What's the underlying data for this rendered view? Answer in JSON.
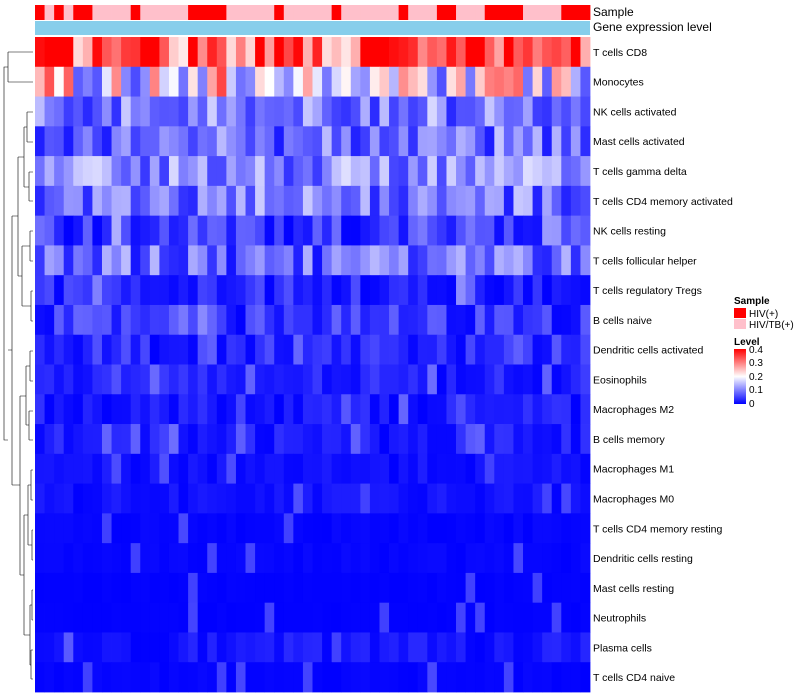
{
  "chart_data": {
    "type": "heatmap",
    "annotation_labels": [
      "Sample",
      "Gene expression level"
    ],
    "sample_groups": [
      "HIV(+)",
      "HIV/TB(+)"
    ],
    "sample_pattern": [
      1,
      0,
      1,
      0,
      1,
      1,
      0,
      0,
      0,
      0,
      1,
      0,
      0,
      0,
      0,
      0,
      1,
      1,
      1,
      1,
      0,
      0,
      0,
      0,
      0,
      1,
      0,
      0,
      0,
      0,
      0,
      1,
      0,
      0,
      0,
      0,
      0,
      0,
      1,
      0,
      0,
      0,
      1,
      1,
      0,
      0,
      0,
      1,
      1,
      1,
      1,
      0,
      0,
      0,
      0,
      1,
      1,
      1
    ],
    "rows": [
      {
        "name": "T cells CD8",
        "base": 0.34
      },
      {
        "name": "Monocytes",
        "base": 0.2
      },
      {
        "name": "NK cells activated",
        "base": 0.1
      },
      {
        "name": "Mast cells activated",
        "base": 0.09
      },
      {
        "name": "T cells gamma delta",
        "base": 0.11
      },
      {
        "name": "T cells CD4 memory activated",
        "base": 0.09
      },
      {
        "name": "NK cells resting",
        "base": 0.06
      },
      {
        "name": "T cells follicular helper",
        "base": 0.08
      },
      {
        "name": "T cells regulatory  Tregs",
        "base": 0.04
      },
      {
        "name": "B cells naive",
        "base": 0.05
      },
      {
        "name": "Dendritic cells activated",
        "base": 0.04
      },
      {
        "name": "Eosinophils",
        "base": 0.03
      },
      {
        "name": "Macrophages M2",
        "base": 0.025
      },
      {
        "name": "B cells memory",
        "base": 0.025
      },
      {
        "name": "Macrophages M1",
        "base": 0.015
      },
      {
        "name": "Macrophages M0",
        "base": 0.015
      },
      {
        "name": "T cells CD4 memory resting",
        "base": 0.005
      },
      {
        "name": "Dendritic cells resting",
        "base": 0.005
      },
      {
        "name": "Mast cells resting",
        "base": 0.002
      },
      {
        "name": "Neutrophils",
        "base": 0.002
      },
      {
        "name": "Plasma cells",
        "base": 0.02
      },
      {
        "name": "T cells CD4 naive",
        "base": 0.005
      }
    ],
    "legend": {
      "sample_title": "Sample",
      "sample_entries": [
        "HIV(+)",
        "HIV/TB(+)"
      ],
      "level_title": "Level",
      "level_ticks": [
        "0.4",
        "0.3",
        "0.2",
        "0.1",
        "0"
      ],
      "level_range": [
        0,
        0.4
      ]
    }
  },
  "colors": {
    "hiv": "#ff0000",
    "hiv_tb": "#ffc0cb",
    "gene_bar": "#87ceeb",
    "low": "#0000ff",
    "mid": "#ffffff",
    "high": "#ff0000"
  }
}
